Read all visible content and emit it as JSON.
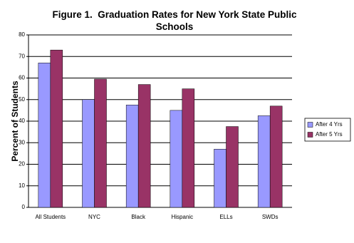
{
  "chart_data": {
    "type": "bar",
    "title": "Figure 1.  Graduation Rates for New York State Public Schools",
    "y_label": "Percent of Students",
    "categories": [
      "All Students",
      "NYC",
      "Black",
      "Hispanic",
      "ELLs",
      "SWDs"
    ],
    "series": [
      {
        "name": "After 4 Yrs",
        "color": "#9999ff",
        "values": [
          67,
          50,
          47.5,
          45,
          27,
          42.5
        ]
      },
      {
        "name": "After 5 Yrs",
        "color": "#993366",
        "values": [
          73,
          59.5,
          57,
          55,
          37.5,
          47
        ]
      }
    ],
    "ylim": [
      0,
      80
    ],
    "yticks": [
      0,
      10,
      20,
      30,
      40,
      50,
      60,
      70,
      80
    ],
    "grid": true,
    "legend": "right"
  }
}
